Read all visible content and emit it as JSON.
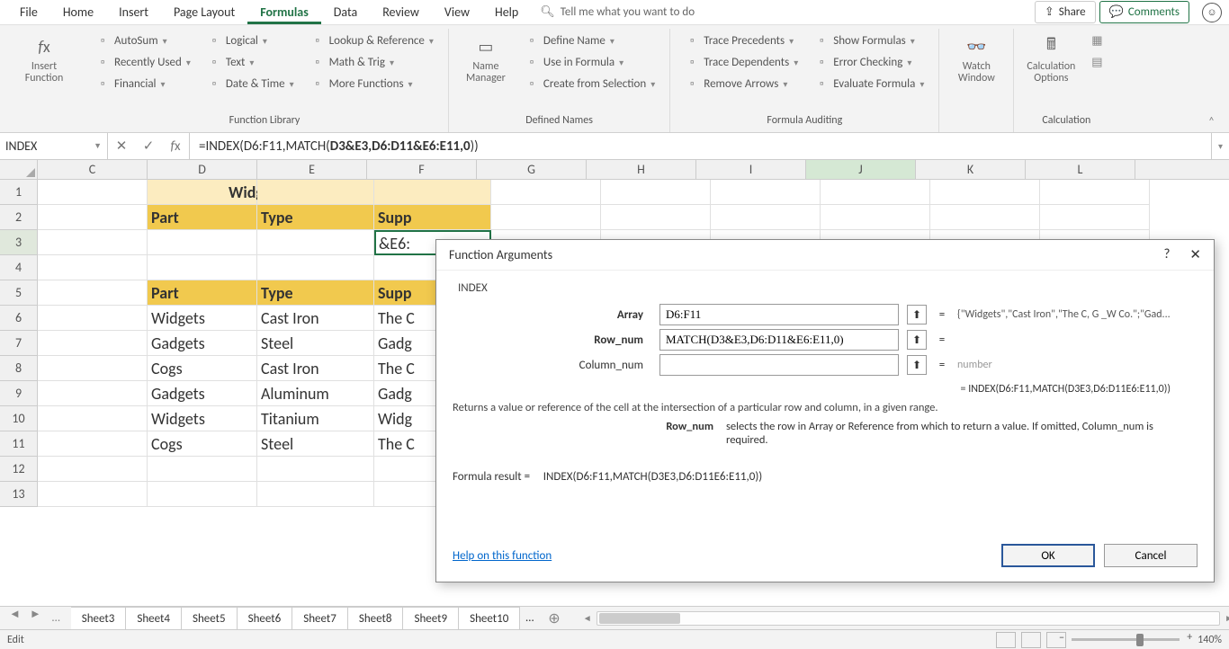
{
  "menu": {
    "tabs": [
      "File",
      "Home",
      "Insert",
      "Page Layout",
      "Formulas",
      "Data",
      "Review",
      "View",
      "Help"
    ],
    "active": "Formulas",
    "tell_me": "Tell me what you want to do",
    "share": "Share",
    "comments": "Comments"
  },
  "ribbon": {
    "insert_function": "Insert Function",
    "library": {
      "title": "Function Library",
      "col1": [
        "AutoSum",
        "Recently Used",
        "Financial"
      ],
      "col2": [
        "Logical",
        "Text",
        "Date & Time"
      ],
      "col3": [
        "Lookup & Reference",
        "Math & Trig",
        "More Functions"
      ]
    },
    "defined": {
      "title": "Defined Names",
      "big": "Name Manager",
      "items": [
        "Define Name",
        "Use in Formula",
        "Create from Selection"
      ]
    },
    "audit": {
      "title": "Formula Auditing",
      "col1": [
        "Trace Precedents",
        "Trace Dependents",
        "Remove Arrows"
      ],
      "col2": [
        "Show Formulas",
        "Error Checking",
        "Evaluate Formula"
      ]
    },
    "watch": "Watch Window",
    "calc": {
      "title": "Calculation",
      "big": "Calculation Options"
    }
  },
  "fbar": {
    "name": "INDEX",
    "formula_prefix": "=INDEX(D6:F11,MATCH(",
    "formula_bold": "D3&E3,D6:D11&E6:E11,0",
    "formula_suffix": "))"
  },
  "grid": {
    "cols": [
      "C",
      "D",
      "E",
      "F",
      "G",
      "H",
      "I",
      "J",
      "K",
      "L"
    ],
    "selected_col_idx": 7,
    "title": "Widget Suplier - Titanium",
    "hdr": [
      "Part",
      "Type",
      "Supp"
    ],
    "active_display": "&E6:",
    "data": [
      [
        "Widgets",
        "Cast Iron",
        "The C"
      ],
      [
        "Gadgets",
        "Steel",
        "Gadg"
      ],
      [
        "Cogs",
        "Cast Iron",
        "The C"
      ],
      [
        "Gadgets",
        "Aluminum",
        "Gadg"
      ],
      [
        "Widgets",
        "Titanium",
        "Widg"
      ],
      [
        "Cogs",
        "Steel",
        "The C"
      ]
    ],
    "row_count": 13
  },
  "sheets": {
    "tabs": [
      "Sheet3",
      "Sheet4",
      "Sheet5",
      "Sheet6",
      "Sheet7",
      "Sheet8",
      "Sheet9",
      "Sheet10"
    ]
  },
  "status": {
    "mode": "Edit",
    "zoom": "140%"
  },
  "dialog": {
    "title": "Function Arguments",
    "fn": "INDEX",
    "rows": [
      {
        "label": "Array",
        "bold": true,
        "value": "D6:F11",
        "preview": "{\"Widgets\",\"Cast Iron\",\"The C, G _W Co.\";\"Gad..."
      },
      {
        "label": "Row_num",
        "bold": true,
        "value": "MATCH(D3&E3,D6:D11&E6:E11,0)",
        "preview": ""
      },
      {
        "label": "Column_num",
        "bold": false,
        "value": "",
        "preview": "number",
        "grey": true
      }
    ],
    "result_line": "=    INDEX(D6:F11,MATCH(D3E3,D6:D11E6:E11,0))",
    "desc": "Returns a value or reference of the cell at the intersection of a particular row and column, in a given range.",
    "arg_name": "Row_num",
    "arg_desc": "selects the row in Array or Reference from which to return a value. If omitted, Column_num is required.",
    "formula_result_label": "Formula result =",
    "formula_result": "INDEX(D6:F11,MATCH(D3E3,D6:D11E6:E11,0))",
    "help": "Help on this function",
    "ok": "OK",
    "cancel": "Cancel"
  }
}
